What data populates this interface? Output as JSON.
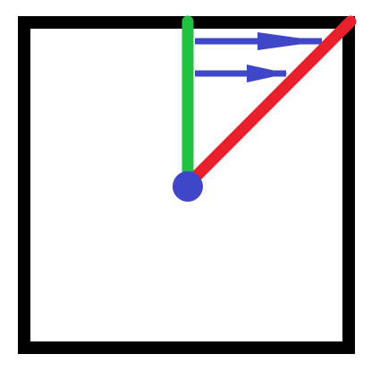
{
  "colors": {
    "background": "#ffffff",
    "frame": "#000000",
    "vertical_line": "#22c043",
    "diagonal_line": "#e8202b",
    "arrows": "#3f46c8",
    "center_point": "#3f46c8"
  },
  "elements": {
    "frame": "square-outline",
    "center_point": "circle",
    "vertical_line": "line",
    "diagonal_line": "line",
    "arrows": [
      "arrow-right",
      "arrow-right"
    ]
  }
}
